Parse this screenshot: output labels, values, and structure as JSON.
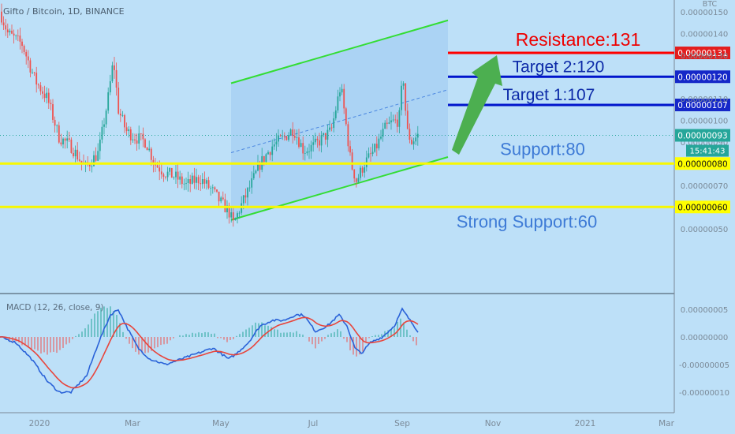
{
  "chart_data": [
    {
      "type": "candlestick",
      "title": "Gifto / Bitcoin, 1D, BINANCE",
      "y_axis_unit": "BTC",
      "ylim": [
        4.3e-07,
        1.55e-06
      ],
      "y_tick_labels": [
        "0.00000150",
        "0.00000140",
        "0.00000130",
        "0.00000110",
        "0.00000100",
        "0.00000090",
        "0.00000070",
        "0.00000050"
      ],
      "x_tick_labels": [
        "2020",
        "Mar",
        "May",
        "Jul",
        "Sep",
        "Nov",
        "2021",
        "Mar"
      ],
      "last_price": "0.00000093",
      "countdown": "15:41:43",
      "levels": [
        {
          "label": "Resistance:131",
          "price": "0.00000131",
          "color": "#ff0000",
          "text_color": "#ee0000",
          "badge_color": "#e31e1e"
        },
        {
          "label": "Target 2:120",
          "price": "0.00000120",
          "color": "#0015cc",
          "text_color": "#0c2aa8",
          "badge_color": "#1528c8"
        },
        {
          "label": "Target 1:107",
          "price": "0.00000107",
          "color": "#0015cc",
          "text_color": "#0c2aa8",
          "badge_color": "#1528c8"
        },
        {
          "label": "Support:80",
          "price": "0.00000080",
          "color": "#f8f800",
          "text_color": "#3d7ad6",
          "badge_color": "#ffff00"
        },
        {
          "label": "Strong Support:60",
          "price": "0.00000060",
          "color": "#f8f800",
          "text_color": "#3d7ad6",
          "badge_color": "#ffff00"
        }
      ],
      "channel": {
        "lower_start": 54,
        "lower_end": 83,
        "upper_start": 117,
        "upper_end": 146,
        "mid_start": 85,
        "mid_end": 114
      },
      "colors": {
        "up": "#26a69a",
        "down": "#ef5350",
        "channel_line": "#33dd33",
        "channel_fill": "#9cc8f0",
        "arrow": "#4caf50"
      }
    },
    {
      "type": "line",
      "title": "MACD (12, 26, close, 9)",
      "ylim": [
        -1.2e-07,
        8e-08
      ],
      "y_tick_labels": [
        "0.00000005",
        "0.00000000",
        "-0.00000005",
        "-0.00000010"
      ],
      "series": [
        {
          "name": "MACD",
          "color": "#2a62d8"
        },
        {
          "name": "Signal",
          "color": "#e8453c"
        }
      ],
      "histogram_colors": {
        "pos": "#26a69a",
        "neg": "#ef5350"
      }
    }
  ]
}
